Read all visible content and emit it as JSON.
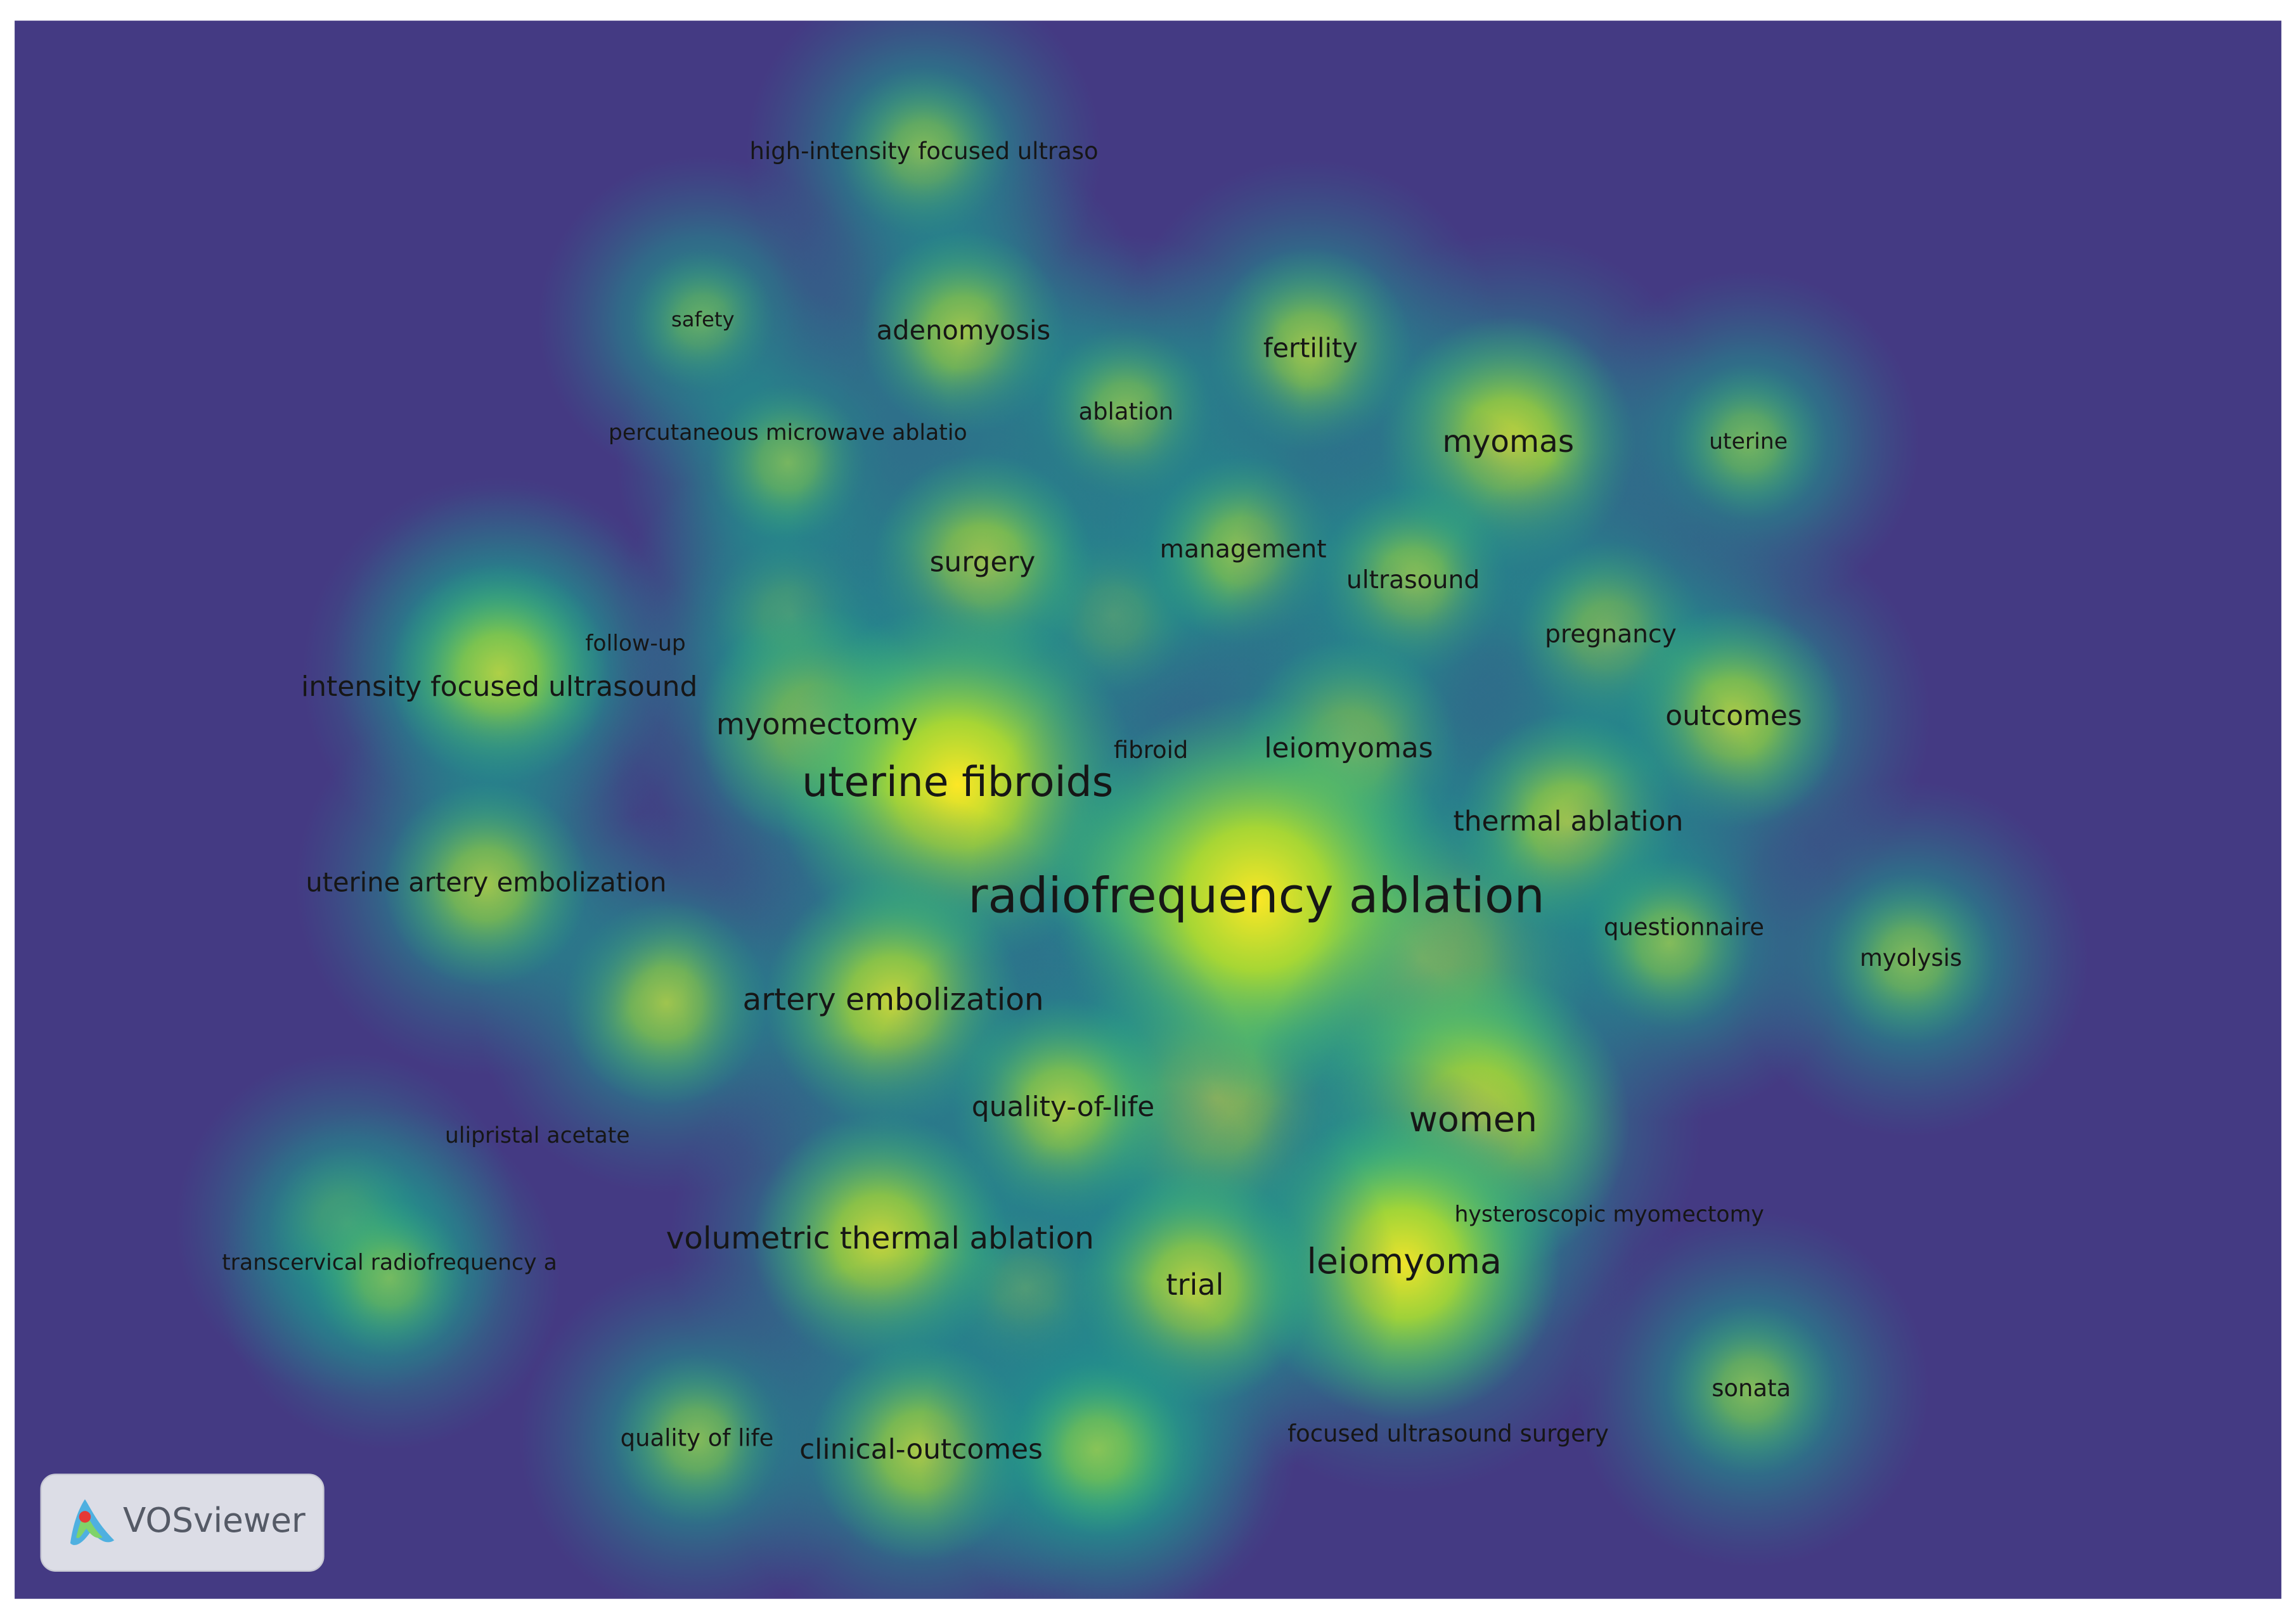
{
  "map": {
    "terms": [
      "high-intensity focused ultraso",
      "safety",
      "adenomyosis",
      "fertility",
      "ablation",
      "percutaneous microwave ablatio",
      "myomas",
      "uterine",
      "surgery",
      "management",
      "ultrasound",
      "follow-up",
      "pregnancy",
      "intensity focused ultrasound",
      "myomectomy",
      "fibroid",
      "leiomyomas",
      "outcomes",
      "uterine fibroids",
      "thermal ablation",
      "uterine artery embolization",
      "radiofrequency ablation",
      "questionnaire",
      "myolysis",
      "artery embolization",
      "quality-of-life",
      "women",
      "ulipristal acetate",
      "hysteroscopic myomectomy",
      "volumetric thermal ablation",
      "leiomyoma",
      "transcervical radiofrequency a",
      "trial",
      "sonata",
      "quality of life",
      "clinical-outcomes",
      "focused ultrasound surgery"
    ]
  },
  "logo": {
    "text": "VOSviewer"
  }
}
